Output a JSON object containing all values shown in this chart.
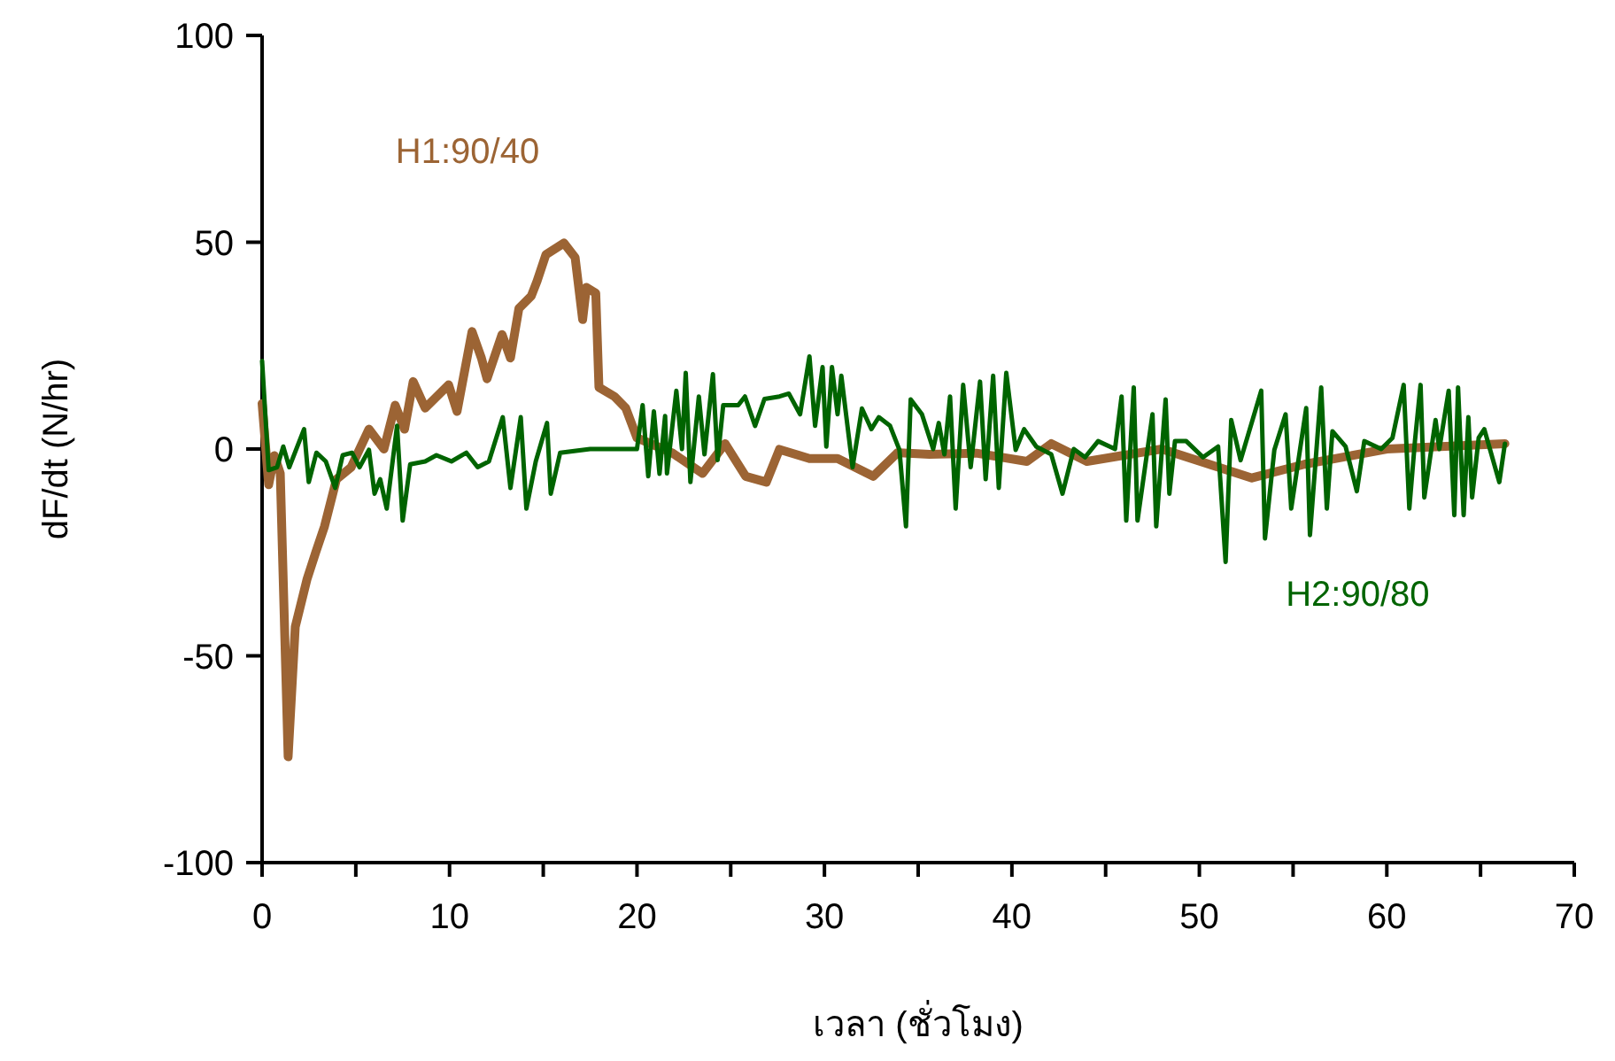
{
  "chart_data": {
    "type": "line",
    "xlabel": "เวลา (ชั่วโมง)",
    "ylabel": "dF/dt (N/hr)",
    "xlim": [
      0,
      70
    ],
    "ylim": [
      -100,
      100
    ],
    "xticks": [
      0,
      {
        "value": 5,
        "label": null
      },
      10,
      {
        "value": 15,
        "label": null
      },
      20,
      {
        "value": 25,
        "label": null
      },
      30,
      {
        "value": 35,
        "label": null
      },
      40,
      {
        "value": 45,
        "label": null
      },
      50,
      {
        "value": 55,
        "label": null
      },
      60,
      {
        "value": 65,
        "label": null
      },
      70
    ],
    "yticks": [
      -100,
      -50,
      0,
      50,
      100
    ],
    "grid": false,
    "marker": "none",
    "line_style": "solid",
    "series": [
      {
        "name": "H1:90/40",
        "color": "#9c6434",
        "x": [
          0,
          0.35,
          0.66,
          0.97,
          1.39,
          1.77,
          2.39,
          2.86,
          3.33,
          3.97,
          4.75,
          5.7,
          6.5,
          7.1,
          7.6,
          8.06,
          8.7,
          9.95,
          10.4,
          11.2,
          11.7,
          12.0,
          12.8,
          13.25,
          13.7,
          14.36,
          14.67,
          15.14,
          16.1,
          16.7,
          17.1,
          17.3,
          17.8,
          17.97,
          18.8,
          19.4,
          20.0,
          21.9,
          23.5,
          24.7,
          25.8,
          26.9,
          27.6,
          29.2,
          30.7,
          32.6,
          33.9,
          35.6,
          38.1,
          40.8,
          42.1,
          44,
          48,
          52.8,
          55.6,
          60,
          66.3
        ],
        "values": [
          11,
          -8.6,
          -1.6,
          -5.9,
          -74.4,
          -43,
          -31.6,
          -25,
          -18.7,
          -7.3,
          -4.4,
          4.8,
          0,
          10.6,
          4.8,
          16.3,
          9.9,
          15.5,
          9.1,
          28.4,
          22,
          17,
          27.7,
          22,
          34,
          37,
          40.6,
          47,
          49.8,
          46.3,
          31.3,
          39.1,
          37.7,
          14.9,
          12.7,
          9.9,
          2.7,
          -1,
          -5.9,
          1.3,
          -6.6,
          -8,
          -0.1,
          -2.3,
          -2.3,
          -6.6,
          -0.9,
          -1.3,
          -1,
          -3,
          1.3,
          -3,
          0,
          -7,
          -3.7,
          0,
          1.3
        ]
      },
      {
        "name": "H2:90/80",
        "color": "#006400",
        "x": [
          0,
          0.35,
          0.8,
          1.13,
          1.45,
          2.24,
          2.49,
          2.9,
          3.4,
          3.9,
          4.3,
          4.8,
          5.2,
          5.7,
          6.0,
          6.3,
          6.65,
          7.2,
          7.5,
          7.9,
          8.7,
          9.3,
          10.1,
          10.9,
          11.5,
          12.1,
          12.84,
          13.25,
          13.8,
          14.1,
          14.6,
          15.2,
          15.4,
          15.9,
          17.5,
          19.4,
          20.0,
          20.3,
          20.6,
          20.9,
          21.2,
          21.5,
          21.6,
          22.1,
          22.4,
          22.6,
          22.85,
          23.3,
          23.6,
          24.05,
          24.3,
          24.6,
          25.4,
          25.76,
          26.3,
          26.8,
          27.6,
          28.1,
          28.7,
          29.2,
          29.5,
          29.9,
          30.1,
          30.4,
          30.7,
          30.9,
          31.5,
          32.0,
          32.5,
          32.9,
          33.5,
          34.0,
          34.35,
          34.6,
          35.2,
          35.8,
          36.1,
          36.4,
          36.7,
          37.0,
          37.4,
          37.8,
          38.3,
          38.6,
          39.0,
          39.3,
          39.7,
          40.2,
          40.65,
          41.3,
          42.1,
          42.7,
          43.3,
          43.9,
          44.6,
          45.5,
          45.85,
          46.1,
          46.5,
          46.7,
          47.5,
          47.7,
          48.2,
          48.4,
          48.7,
          49.3,
          50.2,
          51.0,
          51.4,
          51.7,
          52.2,
          53.3,
          53.5,
          54.0,
          54.6,
          54.9,
          55.7,
          55.9,
          56.5,
          56.8,
          57.1,
          57.8,
          58.4,
          58.8,
          59.7,
          60.3,
          60.9,
          61.2,
          61.5,
          61.8,
          62.0,
          62.6,
          62.8,
          63.3,
          63.6,
          63.8,
          64.1,
          64.35,
          64.55,
          64.9,
          65.2,
          65.5,
          66.0,
          66.3
        ],
        "values": [
          21.3,
          -5.1,
          -4.4,
          0.6,
          -4.4,
          4.8,
          -8,
          -0.9,
          -3,
          -9.4,
          -1.5,
          -0.9,
          -4.4,
          -0.2,
          -10.8,
          -7.3,
          -14.4,
          5.6,
          -17.3,
          -3.7,
          -3,
          -1.5,
          -3,
          -0.9,
          -4.4,
          -3,
          7.7,
          -9.4,
          7.7,
          -14.4,
          -3,
          6.3,
          -10.8,
          -0.9,
          0,
          0,
          0,
          10.6,
          -6.6,
          9.1,
          -6,
          8,
          -5.9,
          14.1,
          0,
          18.4,
          -8,
          12.7,
          -1.3,
          18.1,
          -2.7,
          10.6,
          10.6,
          12.7,
          5.6,
          12.1,
          12.7,
          13.4,
          8.4,
          22.4,
          5.6,
          19.8,
          0.6,
          19.8,
          8.4,
          17.7,
          -4.4,
          9.8,
          4.8,
          7.7,
          5.6,
          -0.2,
          -18.7,
          12,
          8.4,
          0,
          6.3,
          -1.3,
          12.7,
          -14.4,
          15.5,
          -4.4,
          16.3,
          -7.3,
          17.7,
          -9.4,
          18.4,
          -0.2,
          4.8,
          0.6,
          -1.3,
          -10.8,
          0,
          -2,
          1.9,
          0,
          12.7,
          -17.3,
          14.9,
          -17.3,
          8.4,
          -18.7,
          12,
          -10.8,
          1.9,
          1.9,
          -2,
          0.6,
          -27.3,
          7,
          -2.7,
          14.1,
          -21.6,
          -0.2,
          8.4,
          -14.4,
          9.9,
          -20.8,
          14.9,
          -14.4,
          4.3,
          0.6,
          -10.2,
          1.9,
          0,
          2.7,
          15.5,
          -14.4,
          1.9,
          15.5,
          -11.7,
          7,
          0,
          14.1,
          -16,
          14.9,
          -16,
          7.7,
          -11.7,
          2.7,
          4.8,
          0,
          -8,
          1.3
        ]
      }
    ]
  }
}
